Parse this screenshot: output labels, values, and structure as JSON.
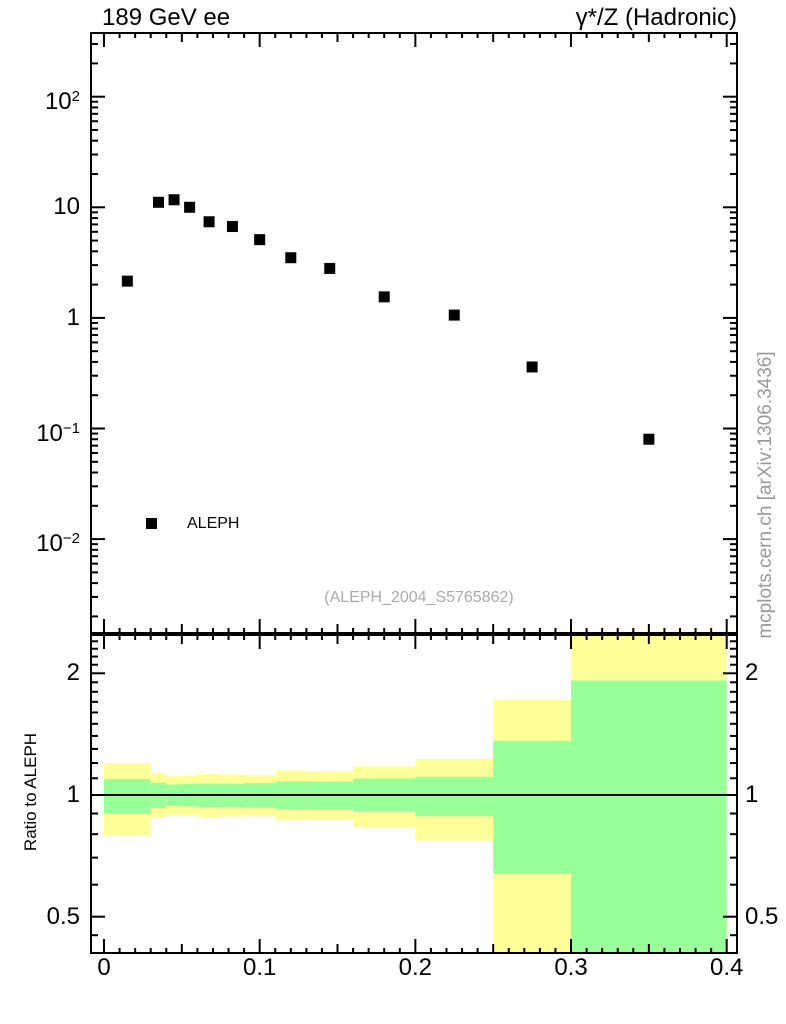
{
  "header": {
    "title_left": "189 GeV ee",
    "title_right": "γ*/Z (Hadronic)"
  },
  "legend": {
    "entries": [
      {
        "label": "ALEPH",
        "marker": "black-filled-square"
      }
    ]
  },
  "watermark": {
    "text": "(ALEPH_2004_S5765862)"
  },
  "side_note": {
    "text": "mcplots.cern.ch [arXiv:1306.3436]"
  },
  "axes": {
    "x": {
      "tick_values": [
        0,
        0.1,
        0.2,
        0.3,
        0.4
      ],
      "tick_labels": [
        "0",
        "0.1",
        "0.2",
        "0.3",
        "0.4"
      ]
    },
    "main_y": {
      "scale": "log",
      "tick_values": [
        100,
        10,
        1,
        0.1,
        0.01
      ],
      "tick_labels": [
        {
          "base": "10",
          "exp": "2"
        },
        {
          "base": "10",
          "exp": ""
        },
        {
          "base": "1",
          "exp": ""
        },
        {
          "base": "10",
          "exp": "−1"
        },
        {
          "base": "10",
          "exp": "−2"
        }
      ]
    },
    "ratio_y": {
      "label": "Ratio to ALEPH",
      "scale": "log",
      "tick_values": [
        2,
        1,
        0.5
      ],
      "tick_labels": [
        "2",
        "1",
        "0.5"
      ]
    }
  },
  "colors": {
    "marker": "#000000",
    "band_outer": "#FFFF99",
    "band_inner": "#99FF99",
    "frame": "#000000",
    "muted_text": "#999999"
  },
  "chart_data": {
    "type": "scatter",
    "title": "189 GeV ee — γ*/Z (Hadronic) — Thrust distribution, ALEPH data with MC ratio bands",
    "xlabel": "",
    "ylabel_ratio": "Ratio to ALEPH",
    "main_panel": {
      "yscale": "log",
      "xlim": [
        -0.0084,
        0.4066
      ],
      "ylim": [
        0.00145,
        377
      ],
      "series": [
        {
          "name": "ALEPH",
          "marker": "filled-square",
          "points": [
            {
              "x": 0.015,
              "y": 2.15
            },
            {
              "x": 0.035,
              "y": 11.1
            },
            {
              "x": 0.045,
              "y": 11.7
            },
            {
              "x": 0.055,
              "y": 10.0
            },
            {
              "x": 0.0675,
              "y": 7.4
            },
            {
              "x": 0.0825,
              "y": 6.7
            },
            {
              "x": 0.1,
              "y": 5.1
            },
            {
              "x": 0.12,
              "y": 3.5
            },
            {
              "x": 0.145,
              "y": 2.8
            },
            {
              "x": 0.18,
              "y": 1.55
            },
            {
              "x": 0.225,
              "y": 1.06
            },
            {
              "x": 0.275,
              "y": 0.36
            },
            {
              "x": 0.35,
              "y": 0.08
            }
          ]
        }
      ]
    },
    "ratio_panel": {
      "yscale": "log",
      "ylim": [
        0.409,
        2.502
      ],
      "unity_line": 1,
      "bands": [
        {
          "x0": 0.0,
          "x1": 0.03,
          "outer": [
            0.795,
            1.2
          ],
          "inner": [
            0.9,
            1.095
          ]
        },
        {
          "x0": 0.03,
          "x1": 0.04,
          "outer": [
            0.878,
            1.135
          ],
          "inner": [
            0.928,
            1.072
          ]
        },
        {
          "x0": 0.04,
          "x1": 0.05,
          "outer": [
            0.893,
            1.112
          ],
          "inner": [
            0.94,
            1.062
          ]
        },
        {
          "x0": 0.05,
          "x1": 0.06,
          "outer": [
            0.889,
            1.116
          ],
          "inner": [
            0.937,
            1.066
          ]
        },
        {
          "x0": 0.06,
          "x1": 0.075,
          "outer": [
            0.882,
            1.128
          ],
          "inner": [
            0.932,
            1.068
          ]
        },
        {
          "x0": 0.075,
          "x1": 0.09,
          "outer": [
            0.885,
            1.124
          ],
          "inner": [
            0.934,
            1.066
          ]
        },
        {
          "x0": 0.09,
          "x1": 0.11,
          "outer": [
            0.886,
            1.12
          ],
          "inner": [
            0.93,
            1.07
          ]
        },
        {
          "x0": 0.11,
          "x1": 0.13,
          "outer": [
            0.866,
            1.15
          ],
          "inner": [
            0.923,
            1.082
          ]
        },
        {
          "x0": 0.13,
          "x1": 0.16,
          "outer": [
            0.87,
            1.145
          ],
          "inner": [
            0.922,
            1.08
          ]
        },
        {
          "x0": 0.16,
          "x1": 0.2,
          "outer": [
            0.833,
            1.178
          ],
          "inner": [
            0.909,
            1.099
          ]
        },
        {
          "x0": 0.2,
          "x1": 0.25,
          "outer": [
            0.771,
            1.228
          ],
          "inner": [
            0.886,
            1.11
          ]
        },
        {
          "x0": 0.25,
          "x1": 0.3,
          "outer": [
            0.4,
            1.72
          ],
          "inner": [
            0.638,
            1.363
          ]
        },
        {
          "x0": 0.3,
          "x1": 0.4,
          "outer": [
            0.4,
            2.6
          ],
          "inner": [
            0.4,
            1.92
          ]
        }
      ]
    }
  }
}
